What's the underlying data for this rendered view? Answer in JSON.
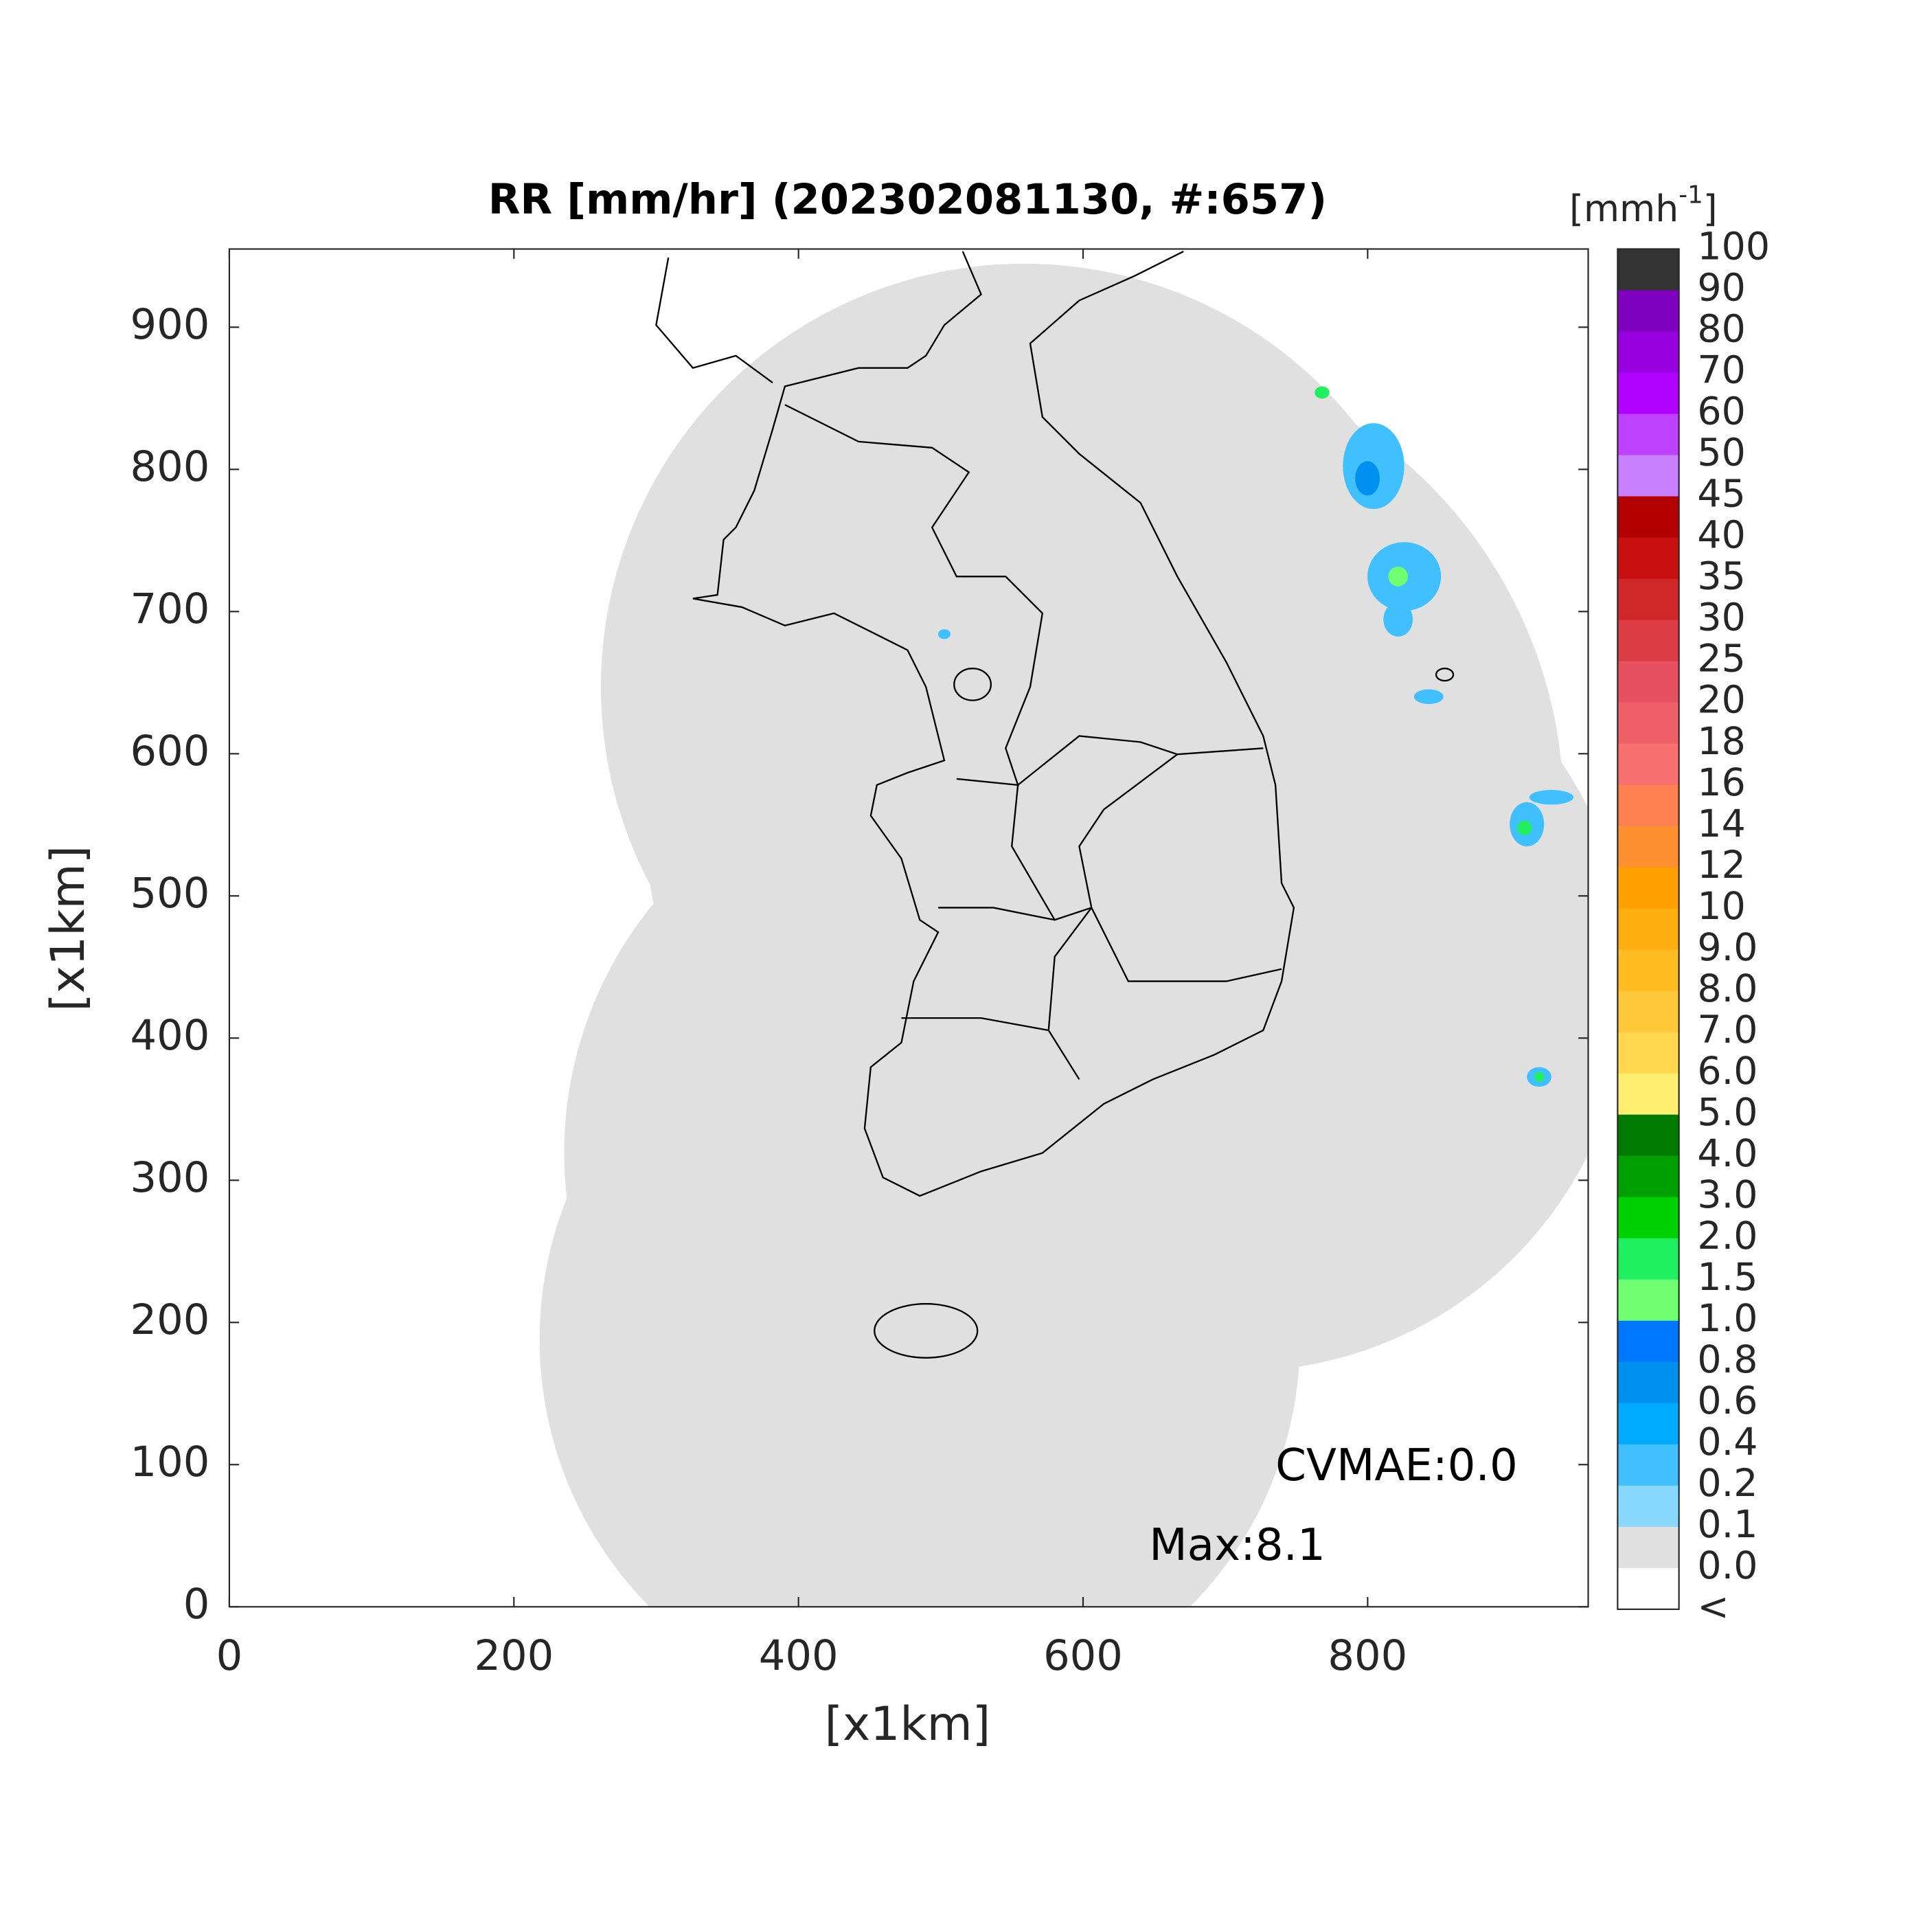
{
  "chart_data": {
    "type": "heatmap",
    "title": "RR [mm/hr] (202302081130, #:657)",
    "x_label": "[x1km]",
    "y_label": "[x1km]",
    "xlim": [
      0,
      955
    ],
    "ylim": [
      0,
      955
    ],
    "xticks": [
      0,
      200,
      400,
      600,
      800
    ],
    "yticks": [
      0,
      100,
      200,
      300,
      400,
      500,
      600,
      700,
      800,
      900
    ],
    "colorbar": {
      "unit": {
        "base": "[mmh",
        "sup": "-1",
        "end": "]"
      },
      "labels": [
        "100",
        "90",
        "80",
        "70",
        "60",
        "50",
        "45",
        "40",
        "35",
        "30",
        "25",
        "20",
        "18",
        "16",
        "14",
        "12",
        "10",
        "9.0",
        "8.0",
        "7.0",
        "6.0",
        "5.0",
        "4.0",
        "3.0",
        "2.0",
        "1.5",
        "1.0",
        "0.8",
        "0.6",
        "0.4",
        "0.2",
        "0.1",
        "0.0",
        "<"
      ],
      "colors": [
        "#333333",
        "#8000c0",
        "#9800e0",
        "#b000ff",
        "#c040ff",
        "#c880ff",
        "#b40000",
        "#c81010",
        "#d02828",
        "#dc3c46",
        "#e65060",
        "#f06068",
        "#f87070",
        "#ff8050",
        "#ff9030",
        "#ffa000",
        "#ffae10",
        "#ffbb20",
        "#ffc838",
        "#ffd850",
        "#ffee70",
        "#007a00",
        "#00a000",
        "#00d000",
        "#20f060",
        "#70ff70",
        "#0077ff",
        "#0090f0",
        "#00aaff",
        "#40c0ff",
        "#88d8ff",
        "#e0e0e0",
        "#ffffff"
      ]
    },
    "annotations": [
      "CVMAE:0.0",
      "Max:8.1"
    ]
  }
}
